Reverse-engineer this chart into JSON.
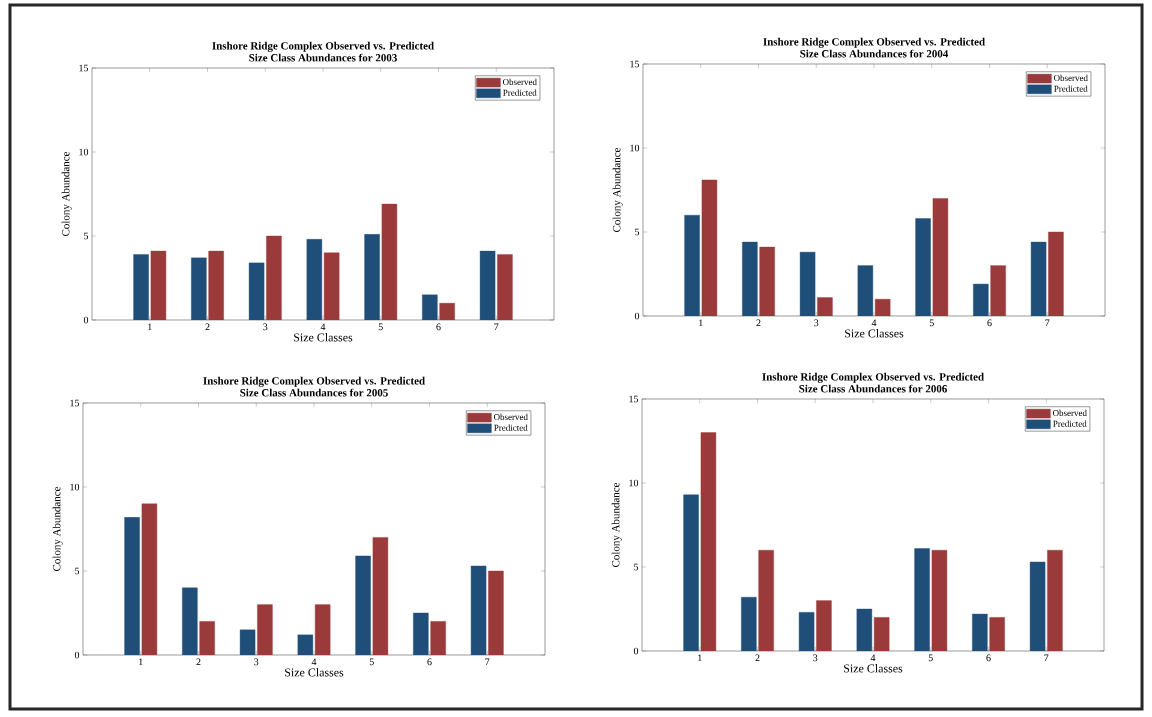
{
  "chart_data": [
    {
      "type": "bar",
      "title": "Inshore Ridge Complex Observed vs. Predicted",
      "subtitle": "Size Class Abundances for 2003",
      "xlabel": "Size Classes",
      "ylabel": "Colony Abundance",
      "categories": [
        "1",
        "2",
        "3",
        "4",
        "5",
        "6",
        "7"
      ],
      "ylim": [
        0,
        15
      ],
      "yticks": [
        0,
        5,
        10,
        15
      ],
      "legend": "top right",
      "series": [
        {
          "name": "Predicted",
          "color": "#1f4e79",
          "values": [
            3.9,
            3.7,
            3.4,
            4.8,
            5.1,
            1.5,
            4.1
          ]
        },
        {
          "name": "Observed",
          "color": "#9b3a3a",
          "values": [
            4.1,
            4.1,
            5.0,
            4.0,
            6.9,
            1.0,
            3.9
          ]
        }
      ]
    },
    {
      "type": "bar",
      "title": "Inshore Ridge Complex Observed vs. Predicted",
      "subtitle": "Size Class Abundances for 2004",
      "xlabel": "Size Classes",
      "ylabel": "Colony Abundance",
      "categories": [
        "1",
        "2",
        "3",
        "4",
        "5",
        "6",
        "7"
      ],
      "ylim": [
        0,
        15
      ],
      "yticks": [
        0,
        5,
        10,
        15
      ],
      "legend": "top right",
      "series": [
        {
          "name": "Predicted",
          "color": "#1f4e79",
          "values": [
            6.0,
            4.4,
            3.8,
            3.0,
            5.8,
            1.9,
            4.4
          ]
        },
        {
          "name": "Observed",
          "color": "#9b3a3a",
          "values": [
            8.1,
            4.1,
            1.1,
            1.0,
            7.0,
            3.0,
            5.0
          ]
        }
      ]
    },
    {
      "type": "bar",
      "title": "Inshore Ridge Complex Observed vs. Predicted",
      "subtitle": "Size Class Abundances for 2005",
      "xlabel": "Size Classes",
      "ylabel": "Colony Abundance",
      "categories": [
        "1",
        "2",
        "3",
        "4",
        "5",
        "6",
        "7"
      ],
      "ylim": [
        0,
        15
      ],
      "yticks": [
        0,
        5,
        10,
        15
      ],
      "legend": "top right",
      "series": [
        {
          "name": "Predicted",
          "color": "#1f4e79",
          "values": [
            8.2,
            4.0,
            1.5,
            1.2,
            5.9,
            2.5,
            5.3
          ]
        },
        {
          "name": "Observed",
          "color": "#9b3a3a",
          "values": [
            9.0,
            2.0,
            3.0,
            3.0,
            7.0,
            2.0,
            5.0
          ]
        }
      ]
    },
    {
      "type": "bar",
      "title": "Inshore Ridge Complex Observed vs. Predicted",
      "subtitle": "Size Class Abundances for 2006",
      "xlabel": "Size Classes",
      "ylabel": "Colony Abundance",
      "categories": [
        "1",
        "2",
        "3",
        "4",
        "5",
        "6",
        "7"
      ],
      "ylim": [
        0,
        15
      ],
      "yticks": [
        0,
        5,
        10,
        15
      ],
      "legend": "top right",
      "series": [
        {
          "name": "Predicted",
          "color": "#1f4e79",
          "values": [
            9.3,
            3.2,
            2.3,
            2.5,
            6.1,
            2.2,
            5.3
          ]
        },
        {
          "name": "Observed",
          "color": "#9b3a3a",
          "values": [
            13.0,
            6.0,
            3.0,
            2.0,
            6.0,
            2.0,
            6.0
          ]
        }
      ]
    }
  ]
}
